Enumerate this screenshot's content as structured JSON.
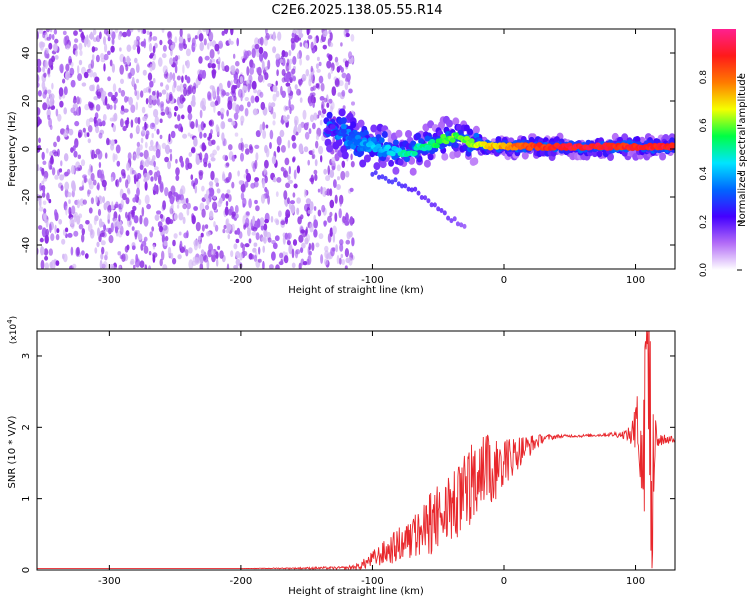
{
  "title": "C2E6.2025.138.05.55.R14",
  "colors": {
    "background": "#ffffff",
    "axis": "#000000",
    "snr_line": "#e8262b",
    "scatter_base": "#8a2be2",
    "scatter_faint": "#d4b8f5"
  },
  "chart_data": [
    {
      "type": "heatmap",
      "panel": "spectrogram",
      "xlabel": "Height of straight line (km)",
      "ylabel": "Frequency (Hz)",
      "xlim": [
        -355,
        130
      ],
      "ylim": [
        -50,
        50
      ],
      "xticks": [
        -300,
        -200,
        -100,
        0,
        100
      ],
      "yticks": [
        -40,
        -20,
        0,
        20,
        40
      ],
      "x_tick_labels": [
        "-300",
        "-200",
        "-100",
        "0",
        "100"
      ],
      "y_tick_labels": [
        "-40",
        "-20",
        "0",
        "20",
        "40"
      ],
      "colorbar": {
        "label": "Normalized spectral amplitude",
        "range": [
          0,
          1
        ],
        "ticks": [
          0,
          0.2,
          0.4,
          0.6,
          0.8
        ],
        "tick_labels": [
          "0.0",
          "0.2",
          "0.4",
          "0.6",
          "0.8"
        ],
        "colormap": [
          "#ffffff",
          "#b36cf7",
          "#4400ff",
          "#0066ff",
          "#00e5ff",
          "#00ff44",
          "#f5ff00",
          "#ff7a00",
          "#ff1a1a",
          "#ff2090"
        ]
      },
      "noise_region": {
        "x": [
          -355,
          -120
        ],
        "y": [
          -50,
          50
        ],
        "amplitude": 0.2
      },
      "ridge": {
        "x": [
          -135,
          -120,
          -110,
          -100,
          -90,
          -80,
          -70,
          -60,
          -50,
          -40,
          -30,
          -20,
          -10,
          0,
          10,
          20,
          30,
          40,
          50,
          60,
          70,
          80,
          90,
          100,
          110,
          130
        ],
        "freq": [
          9,
          6,
          3,
          1,
          0,
          -1,
          -1,
          1,
          3,
          5,
          4,
          2,
          1,
          1,
          1,
          1,
          1,
          1,
          1,
          1,
          1,
          1,
          1,
          1,
          1,
          1
        ],
        "amplitude": [
          0.2,
          0.3,
          0.35,
          0.4,
          0.4,
          0.45,
          0.5,
          0.5,
          0.55,
          0.6,
          0.6,
          0.65,
          0.7,
          0.75,
          0.8,
          0.85,
          0.85,
          0.9,
          0.9,
          0.9,
          0.9,
          0.9,
          0.85,
          0.9,
          0.9,
          0.9
        ]
      },
      "secondary_trace": {
        "x": [
          -100,
          -80,
          -60,
          -45,
          -30
        ],
        "freq": [
          -10,
          -14,
          -20,
          -27,
          -33
        ],
        "amplitude": [
          0.25,
          0.25,
          0.2,
          0.2,
          0.15
        ]
      }
    },
    {
      "type": "line",
      "panel": "snr",
      "xlabel": "Height of straight line (km)",
      "ylabel": "SNR (10 * V/V)",
      "y_scale_label": "(x10",
      "y_scale_exponent": "4",
      "y_scale_suffix": ")",
      "xlim": [
        -355,
        130
      ],
      "ylim": [
        0,
        3.35
      ],
      "xticks": [
        -300,
        -200,
        -100,
        0,
        100
      ],
      "yticks": [
        0,
        1,
        2,
        3
      ],
      "x_tick_labels": [
        "-300",
        "-200",
        "-100",
        "0",
        "100"
      ],
      "y_tick_labels": [
        "0",
        "1",
        "2",
        "3"
      ],
      "series": [
        {
          "x": [
            -355,
            -300,
            -200,
            -120,
            -110,
            -100,
            -90,
            -80,
            -70,
            -60,
            -50,
            -40,
            -30,
            -20,
            -12,
            -10,
            0,
            10,
            20,
            30,
            40,
            50,
            60,
            70,
            80,
            90,
            95,
            100,
            103,
            106,
            108,
            110,
            112,
            115,
            120,
            130
          ],
          "y": [
            0.02,
            0.02,
            0.02,
            0.03,
            0.05,
            0.15,
            0.25,
            0.35,
            0.45,
            0.55,
            0.7,
            0.85,
            1.0,
            1.2,
            1.5,
            1.3,
            1.5,
            1.65,
            1.75,
            1.85,
            1.87,
            1.88,
            1.88,
            1.89,
            1.9,
            1.9,
            1.9,
            1.9,
            2.0,
            1.5,
            2.7,
            3.25,
            1.2,
            1.9,
            1.85,
            1.82
          ],
          "noise_amplitude": [
            0,
            0,
            0,
            0.02,
            0.05,
            0.12,
            0.18,
            0.25,
            0.32,
            0.38,
            0.45,
            0.5,
            0.55,
            0.55,
            0.5,
            0.45,
            0.35,
            0.25,
            0.15,
            0.05,
            0.03,
            0.02,
            0.02,
            0.02,
            0.03,
            0.05,
            0.1,
            0.4,
            0.6,
            0.9,
            1.2,
            1.4,
            1.1,
            0.4,
            0.1,
            0.03
          ]
        }
      ]
    }
  ]
}
